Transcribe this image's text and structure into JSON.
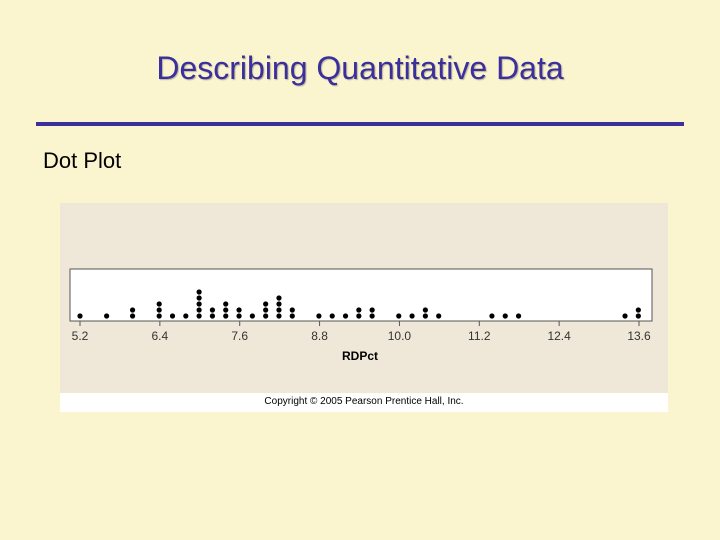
{
  "slide": {
    "title": "Describing Quantitative Data",
    "subheading": "Dot Plot",
    "copyright": "Copyright © 2005 Pearson Prentice Hall, Inc."
  },
  "colors": {
    "background": "#fbf5cf",
    "title": "#3b2f9c",
    "rule": "#3b2f9c",
    "plot_panel": "#efe8d8",
    "dots": "#000000"
  },
  "chart_data": {
    "type": "scatter",
    "title": "",
    "xlabel": "RDPct",
    "ylabel": "",
    "xlim": [
      5.2,
      13.6
    ],
    "x_ticks": [
      "5.2",
      "6.4",
      "7.6",
      "8.8",
      "10.0",
      "11.2",
      "12.4",
      "13.6"
    ],
    "x_tick_values": [
      5.2,
      6.4,
      7.6,
      8.8,
      10.0,
      11.2,
      12.4,
      13.6
    ],
    "grid": false,
    "legend": "none",
    "points": [
      {
        "x": 5.2,
        "count": 1
      },
      {
        "x": 5.6,
        "count": 1
      },
      {
        "x": 5.99,
        "count": 2
      },
      {
        "x": 6.39,
        "count": 3
      },
      {
        "x": 6.59,
        "count": 1
      },
      {
        "x": 6.79,
        "count": 1
      },
      {
        "x": 6.99,
        "count": 5
      },
      {
        "x": 7.19,
        "count": 2
      },
      {
        "x": 7.39,
        "count": 3
      },
      {
        "x": 7.59,
        "count": 2
      },
      {
        "x": 7.79,
        "count": 1
      },
      {
        "x": 7.99,
        "count": 3
      },
      {
        "x": 8.19,
        "count": 4
      },
      {
        "x": 8.39,
        "count": 2
      },
      {
        "x": 8.79,
        "count": 1
      },
      {
        "x": 8.99,
        "count": 1
      },
      {
        "x": 9.19,
        "count": 1
      },
      {
        "x": 9.39,
        "count": 2
      },
      {
        "x": 9.59,
        "count": 2
      },
      {
        "x": 9.99,
        "count": 1
      },
      {
        "x": 10.19,
        "count": 1
      },
      {
        "x": 10.39,
        "count": 2
      },
      {
        "x": 10.59,
        "count": 1
      },
      {
        "x": 11.39,
        "count": 1
      },
      {
        "x": 11.59,
        "count": 1
      },
      {
        "x": 11.79,
        "count": 1
      },
      {
        "x": 13.39,
        "count": 1
      },
      {
        "x": 13.59,
        "count": 2
      }
    ]
  }
}
